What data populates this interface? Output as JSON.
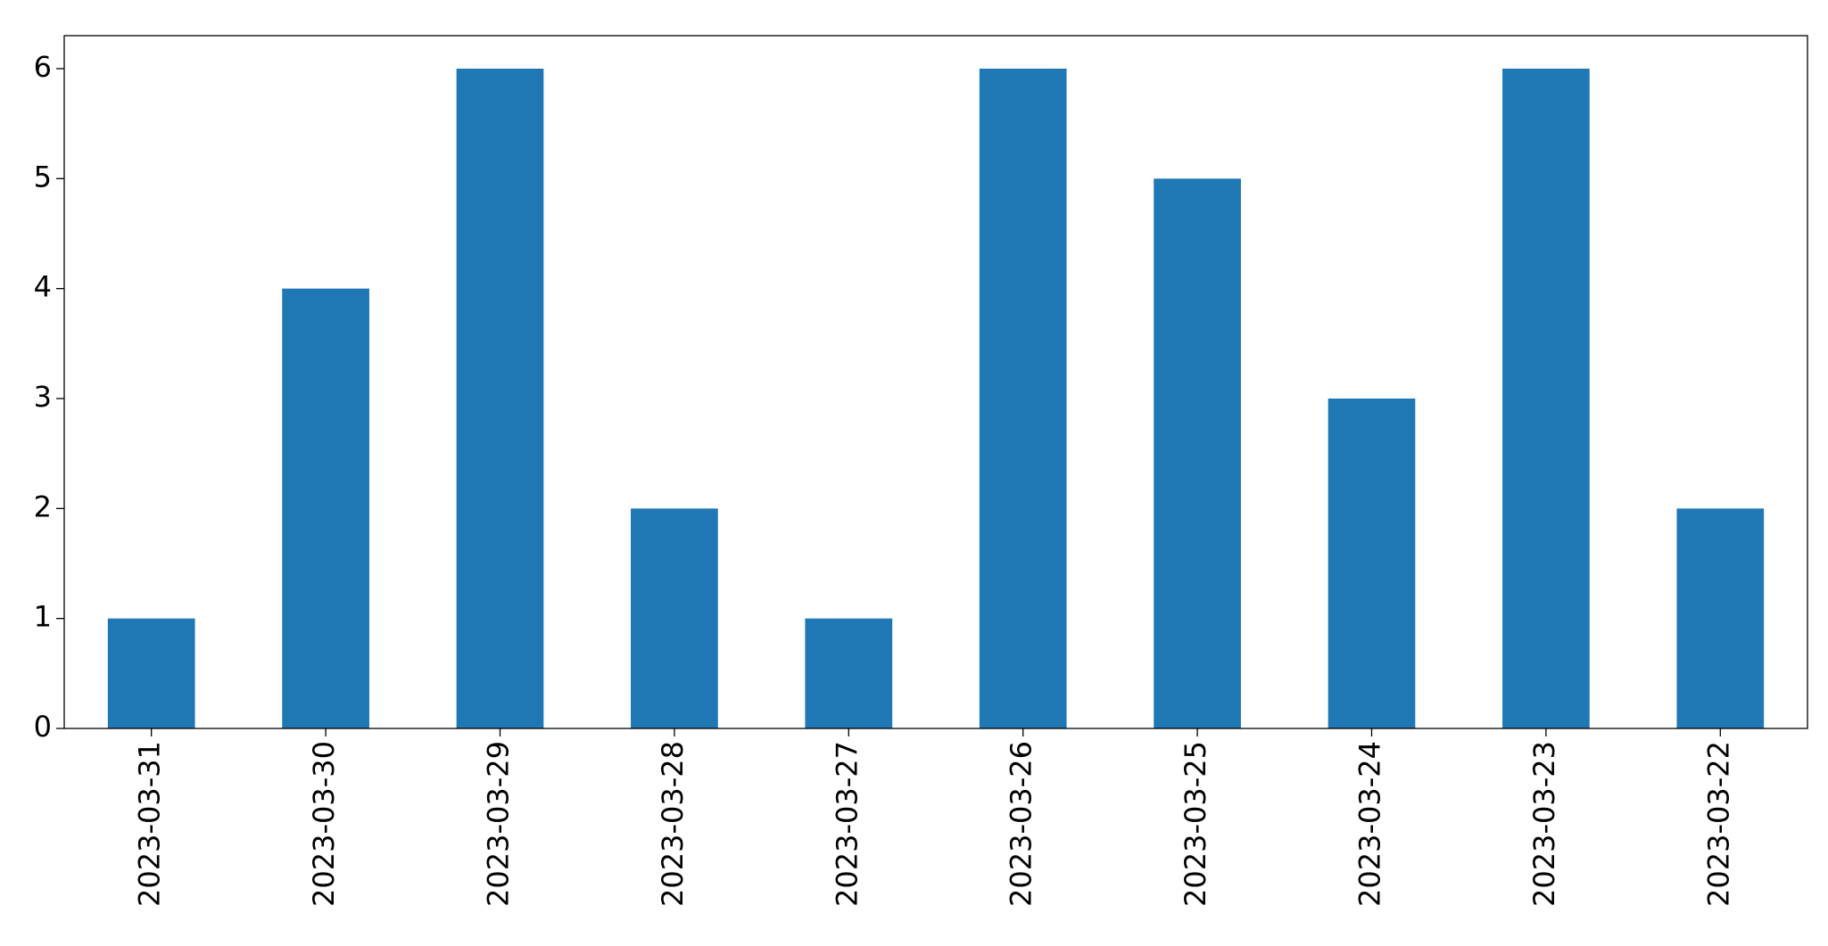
{
  "chart_data": {
    "type": "bar",
    "categories": [
      "2023-03-31",
      "2023-03-30",
      "2023-03-29",
      "2023-03-28",
      "2023-03-27",
      "2023-03-26",
      "2023-03-25",
      "2023-03-24",
      "2023-03-23",
      "2023-03-22"
    ],
    "values": [
      1,
      4,
      6,
      2,
      1,
      6,
      5,
      3,
      6,
      2
    ],
    "color": "#1f77b4",
    "ylim": [
      0,
      6.3
    ],
    "yticks": [
      0,
      1,
      2,
      3,
      4,
      5,
      6
    ],
    "grid": false
  }
}
